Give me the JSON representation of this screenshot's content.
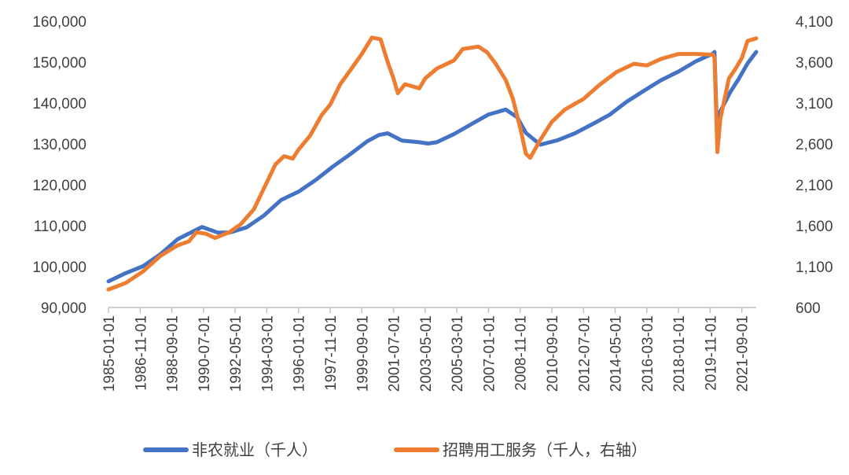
{
  "chart_data": {
    "type": "line",
    "title": "",
    "xlabel": "",
    "ylabel": "",
    "y_left": {
      "lim": [
        90000,
        160000
      ],
      "ticks": [
        "90,000",
        "100,000",
        "110,000",
        "120,000",
        "130,000",
        "140,000",
        "150,000",
        "160,000"
      ]
    },
    "y_right": {
      "lim": [
        600,
        4100
      ],
      "ticks": [
        "600",
        "1,100",
        "1,600",
        "2,100",
        "2,600",
        "3,100",
        "3,600",
        "4,100"
      ]
    },
    "x_ticks": [
      "1985-01-01",
      "1986-11-01",
      "1988-09-01",
      "1990-07-01",
      "1992-05-01",
      "1994-03-01",
      "1996-01-01",
      "1997-11-01",
      "1999-09-01",
      "2001-07-01",
      "2003-05-01",
      "2005-03-01",
      "2007-01-01",
      "2008-11-01",
      "2010-09-01",
      "2012-07-01",
      "2014-05-01",
      "2016-03-01",
      "2018-01-01",
      "2019-11-01",
      "2021-09-01"
    ],
    "x_range": [
      "1985-01-01",
      "2022-07-01"
    ],
    "grid": false,
    "legend_position": "bottom",
    "series": [
      {
        "name": "非农就业（千人）",
        "axis": "left",
        "color": "#4472C4",
        "points": [
          [
            "1985-01-01",
            96400
          ],
          [
            "1986-01-01",
            98400
          ],
          [
            "1987-01-01",
            100100
          ],
          [
            "1988-01-01",
            103000
          ],
          [
            "1989-01-01",
            106700
          ],
          [
            "1989-09-01",
            108100
          ],
          [
            "1990-06-01",
            109700
          ],
          [
            "1991-05-01",
            108300
          ],
          [
            "1992-01-01",
            108300
          ],
          [
            "1993-01-01",
            109600
          ],
          [
            "1994-01-01",
            112500
          ],
          [
            "1995-01-01",
            116300
          ],
          [
            "1996-01-01",
            118300
          ],
          [
            "1997-01-01",
            121200
          ],
          [
            "1998-01-01",
            124500
          ],
          [
            "1999-01-01",
            127500
          ],
          [
            "2000-01-01",
            130700
          ],
          [
            "2000-09-01",
            132200
          ],
          [
            "2001-03-01",
            132600
          ],
          [
            "2002-01-01",
            130800
          ],
          [
            "2003-01-01",
            130400
          ],
          [
            "2003-07-01",
            130100
          ],
          [
            "2004-01-01",
            130400
          ],
          [
            "2005-01-01",
            132400
          ],
          [
            "2006-01-01",
            134800
          ],
          [
            "2007-01-01",
            137200
          ],
          [
            "2008-01-01",
            138400
          ],
          [
            "2008-09-01",
            136500
          ],
          [
            "2009-03-01",
            132700
          ],
          [
            "2010-01-01",
            129800
          ],
          [
            "2011-01-01",
            130900
          ],
          [
            "2012-01-01",
            132600
          ],
          [
            "2013-01-01",
            134800
          ],
          [
            "2014-01-01",
            137100
          ],
          [
            "2015-01-01",
            140300
          ],
          [
            "2016-01-01",
            143000
          ],
          [
            "2017-01-01",
            145600
          ],
          [
            "2018-01-01",
            147700
          ],
          [
            "2019-01-01",
            150200
          ],
          [
            "2020-01-01",
            152100
          ],
          [
            "2020-02-01",
            152500
          ],
          [
            "2020-04-01",
            130400
          ],
          [
            "2020-06-01",
            137900
          ],
          [
            "2021-01-01",
            142700
          ],
          [
            "2021-07-01",
            146000
          ],
          [
            "2022-01-01",
            149700
          ],
          [
            "2022-07-01",
            152500
          ]
        ]
      },
      {
        "name": "招聘用工服务（千人，右轴）",
        "axis": "right",
        "color": "#ED7D31",
        "points": [
          [
            "1985-01-01",
            820
          ],
          [
            "1986-01-01",
            900
          ],
          [
            "1987-01-01",
            1040
          ],
          [
            "1988-01-01",
            1230
          ],
          [
            "1989-01-01",
            1360
          ],
          [
            "1989-09-01",
            1410
          ],
          [
            "1990-02-01",
            1520
          ],
          [
            "1990-09-01",
            1500
          ],
          [
            "1991-03-01",
            1450
          ],
          [
            "1992-01-01",
            1520
          ],
          [
            "1992-09-01",
            1620
          ],
          [
            "1993-06-01",
            1800
          ],
          [
            "1994-03-01",
            2130
          ],
          [
            "1994-09-01",
            2350
          ],
          [
            "1995-03-01",
            2450
          ],
          [
            "1995-09-01",
            2420
          ],
          [
            "1996-01-01",
            2530
          ],
          [
            "1996-09-01",
            2700
          ],
          [
            "1997-05-01",
            2950
          ],
          [
            "1997-11-01",
            3080
          ],
          [
            "1998-06-01",
            3330
          ],
          [
            "1999-01-01",
            3500
          ],
          [
            "1999-09-01",
            3700
          ],
          [
            "2000-04-01",
            3900
          ],
          [
            "2000-10-01",
            3880
          ],
          [
            "2001-03-01",
            3600
          ],
          [
            "2001-07-01",
            3400
          ],
          [
            "2001-10-01",
            3220
          ],
          [
            "2002-03-01",
            3330
          ],
          [
            "2003-01-01",
            3280
          ],
          [
            "2003-05-01",
            3400
          ],
          [
            "2004-01-01",
            3520
          ],
          [
            "2005-01-01",
            3620
          ],
          [
            "2005-07-01",
            3760
          ],
          [
            "2006-06-01",
            3790
          ],
          [
            "2006-12-01",
            3720
          ],
          [
            "2007-06-01",
            3580
          ],
          [
            "2008-01-01",
            3380
          ],
          [
            "2008-06-01",
            3150
          ],
          [
            "2008-11-01",
            2800
          ],
          [
            "2009-03-01",
            2480
          ],
          [
            "2009-06-01",
            2430
          ],
          [
            "2010-01-01",
            2650
          ],
          [
            "2010-09-01",
            2870
          ],
          [
            "2011-06-01",
            3020
          ],
          [
            "2012-07-01",
            3150
          ],
          [
            "2013-06-01",
            3320
          ],
          [
            "2014-06-01",
            3480
          ],
          [
            "2015-06-01",
            3580
          ],
          [
            "2016-03-01",
            3560
          ],
          [
            "2017-01-01",
            3640
          ],
          [
            "2018-01-01",
            3700
          ],
          [
            "2019-01-01",
            3700
          ],
          [
            "2020-01-01",
            3690
          ],
          [
            "2020-02-01",
            3650
          ],
          [
            "2020-04-01",
            2500
          ],
          [
            "2020-06-01",
            2900
          ],
          [
            "2020-12-01",
            3400
          ],
          [
            "2021-05-01",
            3530
          ],
          [
            "2021-09-01",
            3650
          ],
          [
            "2022-01-01",
            3860
          ],
          [
            "2022-07-01",
            3890
          ]
        ]
      }
    ]
  }
}
